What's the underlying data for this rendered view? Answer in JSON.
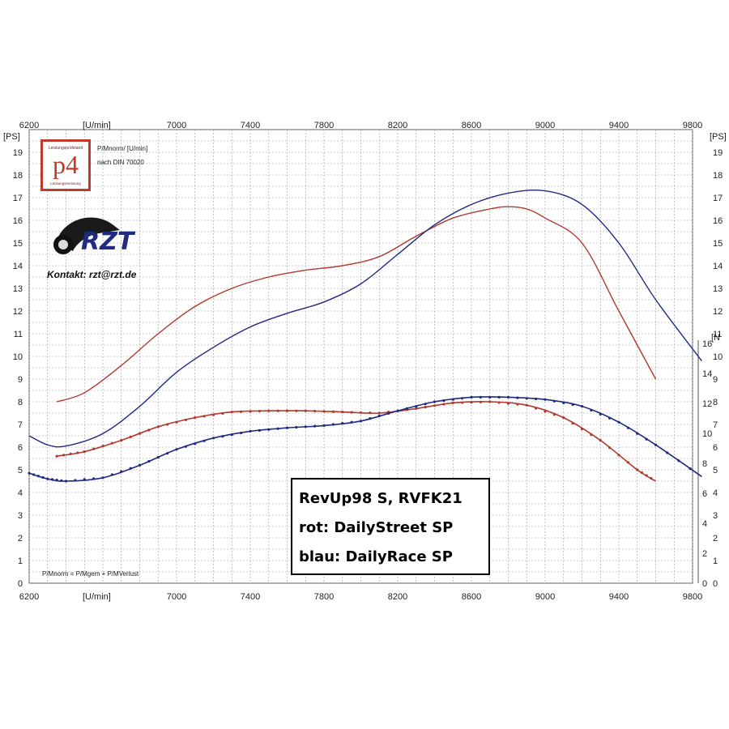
{
  "chart_data": {
    "type": "line",
    "x_ticks": [
      6200,
      7000,
      7400,
      7800,
      8200,
      8600,
      9000,
      9400,
      9800
    ],
    "x_unit_label": "[U/min]",
    "x_range": [
      6200,
      9800
    ],
    "y_left_label": "[PS]",
    "y_left_range": [
      0,
      20
    ],
    "y_left_ticks": [
      0,
      1,
      2,
      3,
      4,
      5,
      6,
      7,
      8,
      9,
      10,
      11,
      12,
      13,
      14,
      15,
      16,
      17,
      18,
      19
    ],
    "y_right_label": "[PS]",
    "y_right_torque_label": "[N",
    "y_right_torque_ticks": [
      0,
      2,
      4,
      6,
      8,
      10,
      12,
      14,
      16
    ],
    "grid": true,
    "power_series": [
      {
        "color": "#b03a2e",
        "x": [
          6350,
          6500,
          6700,
          6900,
          7100,
          7300,
          7500,
          7700,
          7900,
          8100,
          8300,
          8500,
          8700,
          8800,
          8900,
          9000,
          9200,
          9400,
          9600
        ],
        "y": [
          8.0,
          8.4,
          9.6,
          11.0,
          12.2,
          13.0,
          13.5,
          13.8,
          14.0,
          14.4,
          15.3,
          16.1,
          16.5,
          16.6,
          16.5,
          16.1,
          15.0,
          12.0,
          9.0
        ]
      },
      {
        "color": "#1f2a80",
        "x": [
          6200,
          6300,
          6400,
          6600,
          6800,
          7000,
          7200,
          7400,
          7600,
          7800,
          8000,
          8200,
          8400,
          8600,
          8800,
          9000,
          9200,
          9400,
          9600,
          9850
        ],
        "y": [
          6.5,
          6.1,
          6.05,
          6.6,
          7.8,
          9.3,
          10.4,
          11.3,
          11.9,
          12.4,
          13.2,
          14.5,
          15.8,
          16.7,
          17.2,
          17.3,
          16.7,
          15.0,
          12.5,
          9.8
        ]
      }
    ],
    "torque_series": [
      {
        "color": "#b03a2e",
        "x": [
          6350,
          6500,
          6700,
          6900,
          7100,
          7300,
          7500,
          7700,
          7900,
          8100,
          8300,
          8500,
          8700,
          8900,
          9100,
          9300,
          9500,
          9600
        ],
        "y": [
          5.6,
          5.8,
          6.3,
          6.9,
          7.3,
          7.55,
          7.6,
          7.6,
          7.55,
          7.5,
          7.7,
          7.95,
          8.0,
          7.85,
          7.3,
          6.3,
          5.0,
          4.5
        ]
      },
      {
        "color": "#1f2a80",
        "x": [
          6200,
          6300,
          6400,
          6600,
          6800,
          7000,
          7200,
          7400,
          7600,
          7800,
          8000,
          8200,
          8400,
          8600,
          8800,
          9000,
          9200,
          9400,
          9600,
          9850
        ],
        "y": [
          4.85,
          4.6,
          4.5,
          4.65,
          5.2,
          5.9,
          6.4,
          6.7,
          6.85,
          6.95,
          7.15,
          7.6,
          8.0,
          8.2,
          8.2,
          8.1,
          7.8,
          7.1,
          6.1,
          4.7
        ]
      }
    ]
  },
  "logo": {
    "text": "p4",
    "top_caption": "Leistungsprüfstand",
    "bottom_caption": "Leistungsmessung"
  },
  "header_notes": {
    "line1": "P/Mnorm/ [U/min]",
    "line2": "nach DIN 70020"
  },
  "contact": "Kontakt: rzt@rzt.de",
  "footer_note": "P/Mnorm = P/Mgem + P/MVerlust",
  "legend": {
    "line1": "RevUp98 S, RVFK21",
    "line2": "rot: DailyStreet SP",
    "line3": "blau: DailyRace SP"
  },
  "colors": {
    "red": "#b03a2e",
    "blue": "#1f2a80",
    "grid": "#9a9a9a"
  }
}
